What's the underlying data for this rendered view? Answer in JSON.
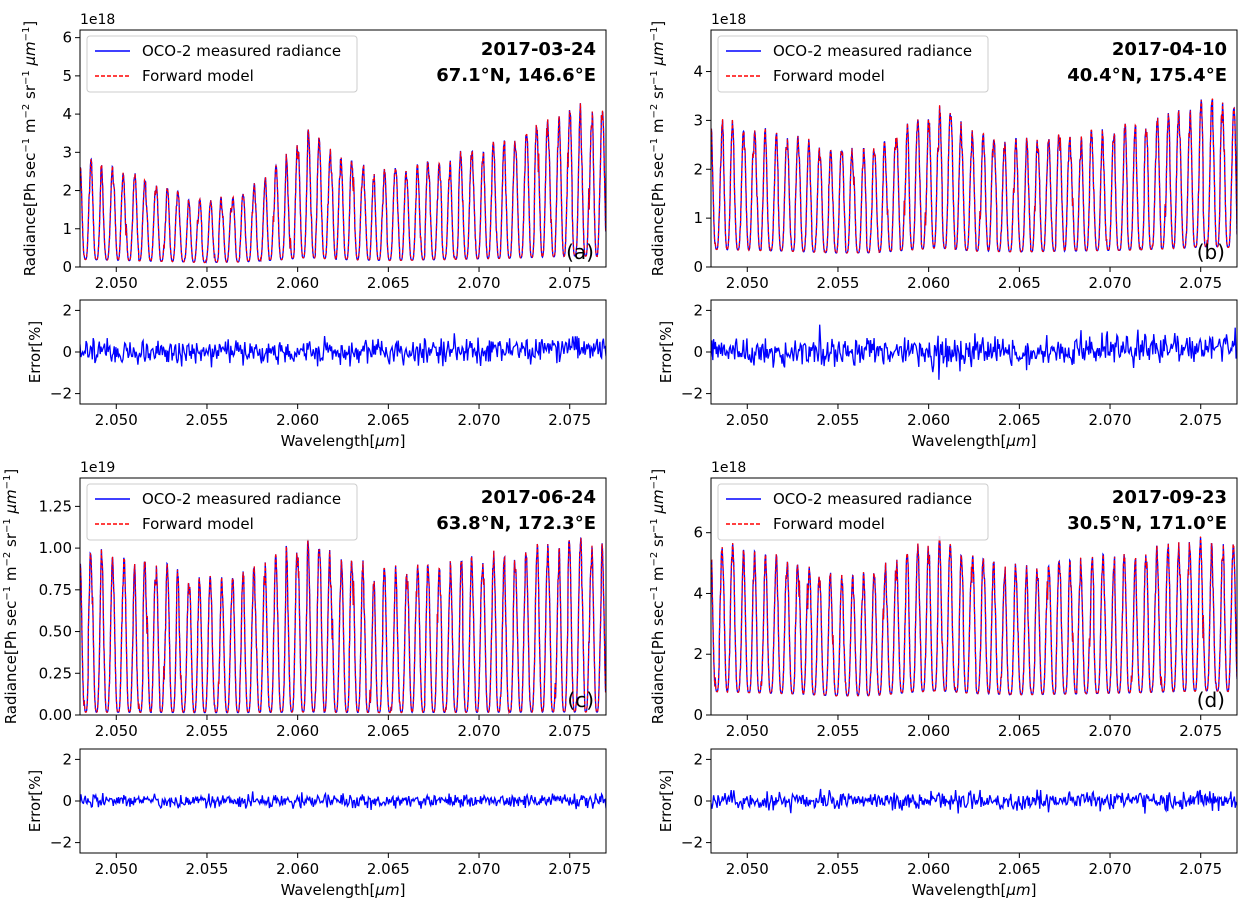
{
  "figure": {
    "xlabel_main": "Wavelength",
    "xlabel_unit": "μm",
    "error_ylabel": "Error[%]",
    "radiance_ylabel_parts": [
      "Radiance[Ph sec",
      "−1",
      " m",
      "−2",
      " sr",
      "−1",
      " ",
      "μm",
      "−1",
      "]"
    ],
    "legend_measured": "OCO-2 measured radiance",
    "legend_model": "Forward model",
    "colors": {
      "measured": "#0000ff",
      "model": "#ff0000"
    }
  },
  "chart_data": [
    {
      "type": "line",
      "panel_label": "(a)",
      "date": "2017-03-24",
      "location": "67.1°N, 146.6°E",
      "offset_label": "1e18",
      "xlim": [
        2.048,
        2.077
      ],
      "xticks": [
        2.05,
        2.055,
        2.06,
        2.065,
        2.07,
        2.075
      ],
      "xtick_labels": [
        "2.050",
        "2.055",
        "2.060",
        "2.065",
        "2.070",
        "2.075"
      ],
      "radiance": {
        "ylim": [
          0,
          6.2
        ],
        "yticks": [
          0,
          1,
          2,
          3,
          4,
          5,
          6
        ],
        "ytick_labels": [
          "0",
          "1",
          "2",
          "3",
          "4",
          "5",
          "6"
        ],
        "series": [
          {
            "name": "OCO-2 measured radiance",
            "style": "solid"
          },
          {
            "name": "Forward model",
            "style": "dashed"
          }
        ],
        "envelope": [
          [
            2.048,
            3.0
          ],
          [
            2.052,
            2.3
          ],
          [
            2.055,
            1.75
          ],
          [
            2.057,
            2.0
          ],
          [
            2.059,
            2.8
          ],
          [
            2.0605,
            3.7
          ],
          [
            2.0625,
            2.9
          ],
          [
            2.065,
            2.55
          ],
          [
            2.068,
            2.9
          ],
          [
            2.0715,
            3.4
          ],
          [
            2.074,
            4.0
          ],
          [
            2.0755,
            4.35
          ],
          [
            2.077,
            4.1
          ]
        ],
        "minima": 0.2,
        "line_period_um": 0.0006
      },
      "error": {
        "ylim": [
          -2.5,
          2.5
        ],
        "yticks": [
          -2,
          0,
          2
        ],
        "ytick_labels": [
          "−2",
          "0",
          "2"
        ],
        "noise_amplitude": 0.45,
        "approx_range": [
          -1.2,
          1.8
        ]
      }
    },
    {
      "type": "line",
      "panel_label": "(b)",
      "date": "2017-04-10",
      "location": "40.4°N, 175.4°E",
      "offset_label": "1e18",
      "xlim": [
        2.048,
        2.077
      ],
      "xticks": [
        2.05,
        2.055,
        2.06,
        2.065,
        2.07,
        2.075
      ],
      "xtick_labels": [
        "2.050",
        "2.055",
        "2.060",
        "2.065",
        "2.070",
        "2.075"
      ],
      "radiance": {
        "ylim": [
          0,
          4.85
        ],
        "yticks": [
          0,
          1,
          2,
          3,
          4
        ],
        "ytick_labels": [
          "0",
          "1",
          "2",
          "3",
          "4"
        ],
        "series": [
          {
            "name": "OCO-2 measured radiance",
            "style": "solid"
          },
          {
            "name": "Forward model",
            "style": "dashed"
          }
        ],
        "envelope": [
          [
            2.048,
            3.1
          ],
          [
            2.052,
            2.8
          ],
          [
            2.055,
            2.45
          ],
          [
            2.057,
            2.5
          ],
          [
            2.059,
            3.0
          ],
          [
            2.0605,
            3.35
          ],
          [
            2.0625,
            2.8
          ],
          [
            2.065,
            2.65
          ],
          [
            2.068,
            2.8
          ],
          [
            2.0715,
            3.0
          ],
          [
            2.074,
            3.3
          ],
          [
            2.0755,
            3.6
          ],
          [
            2.077,
            3.4
          ]
        ],
        "minima": 0.35,
        "line_period_um": 0.0006
      },
      "error": {
        "ylim": [
          -2.5,
          2.5
        ],
        "yticks": [
          -2,
          0,
          2
        ],
        "ytick_labels": [
          "−2",
          "0",
          "2"
        ],
        "noise_amplitude": 0.55,
        "approx_range": [
          -1.8,
          2.2
        ]
      }
    },
    {
      "type": "line",
      "panel_label": "(c)",
      "date": "2017-06-24",
      "location": "63.8°N, 172.3°E",
      "offset_label": "1e19",
      "xlim": [
        2.048,
        2.077
      ],
      "xticks": [
        2.05,
        2.055,
        2.06,
        2.065,
        2.07,
        2.075
      ],
      "xtick_labels": [
        "2.050",
        "2.055",
        "2.060",
        "2.065",
        "2.070",
        "2.075"
      ],
      "radiance": {
        "ylim": [
          0,
          1.42
        ],
        "yticks": [
          0,
          0.25,
          0.5,
          0.75,
          1.0,
          1.25
        ],
        "ytick_labels": [
          "0.00",
          "0.25",
          "0.50",
          "0.75",
          "1.00",
          "1.25"
        ],
        "series": [
          {
            "name": "OCO-2 measured radiance",
            "style": "solid"
          },
          {
            "name": "Forward model",
            "style": "dashed"
          }
        ],
        "envelope": [
          [
            2.048,
            1.03
          ],
          [
            2.052,
            0.95
          ],
          [
            2.055,
            0.83
          ],
          [
            2.057,
            0.88
          ],
          [
            2.059,
            1.0
          ],
          [
            2.0605,
            1.08
          ],
          [
            2.0625,
            0.95
          ],
          [
            2.065,
            0.9
          ],
          [
            2.068,
            0.93
          ],
          [
            2.0715,
            1.0
          ],
          [
            2.074,
            1.05
          ],
          [
            2.0755,
            1.09
          ],
          [
            2.077,
            1.02
          ]
        ],
        "minima": 0.05,
        "line_period_um": 0.0006
      },
      "error": {
        "ylim": [
          -2.5,
          2.5
        ],
        "yticks": [
          -2,
          0,
          2
        ],
        "ytick_labels": [
          "−2",
          "0",
          "2"
        ],
        "noise_amplitude": 0.25,
        "approx_range": [
          -1.2,
          1.0
        ]
      }
    },
    {
      "type": "line",
      "panel_label": "(d)",
      "date": "2017-09-23",
      "location": "30.5°N, 171.0°E",
      "offset_label": "1e18",
      "xlim": [
        2.048,
        2.077
      ],
      "xticks": [
        2.05,
        2.055,
        2.06,
        2.065,
        2.07,
        2.075
      ],
      "xtick_labels": [
        "2.050",
        "2.055",
        "2.060",
        "2.065",
        "2.070",
        "2.075"
      ],
      "radiance": {
        "ylim": [
          0,
          7.8
        ],
        "yticks": [
          0,
          2,
          4,
          6
        ],
        "ytick_labels": [
          "0",
          "2",
          "4",
          "6"
        ],
        "series": [
          {
            "name": "OCO-2 measured radiance",
            "style": "solid"
          },
          {
            "name": "Forward model",
            "style": "dashed"
          }
        ],
        "envelope": [
          [
            2.048,
            5.8
          ],
          [
            2.052,
            5.3
          ],
          [
            2.055,
            4.7
          ],
          [
            2.057,
            4.8
          ],
          [
            2.059,
            5.6
          ],
          [
            2.0605,
            6.0
          ],
          [
            2.0625,
            5.3
          ],
          [
            2.065,
            5.0
          ],
          [
            2.068,
            5.2
          ],
          [
            2.0715,
            5.5
          ],
          [
            2.074,
            5.8
          ],
          [
            2.0755,
            6.0
          ],
          [
            2.077,
            5.7
          ]
        ],
        "minima": 0.4,
        "line_period_um": 0.0006
      },
      "error": {
        "ylim": [
          -2.5,
          2.5
        ],
        "yticks": [
          -2,
          0,
          2
        ],
        "ytick_labels": [
          "−2",
          "0",
          "2"
        ],
        "noise_amplitude": 0.35,
        "approx_range": [
          -1.2,
          1.0
        ]
      }
    }
  ]
}
